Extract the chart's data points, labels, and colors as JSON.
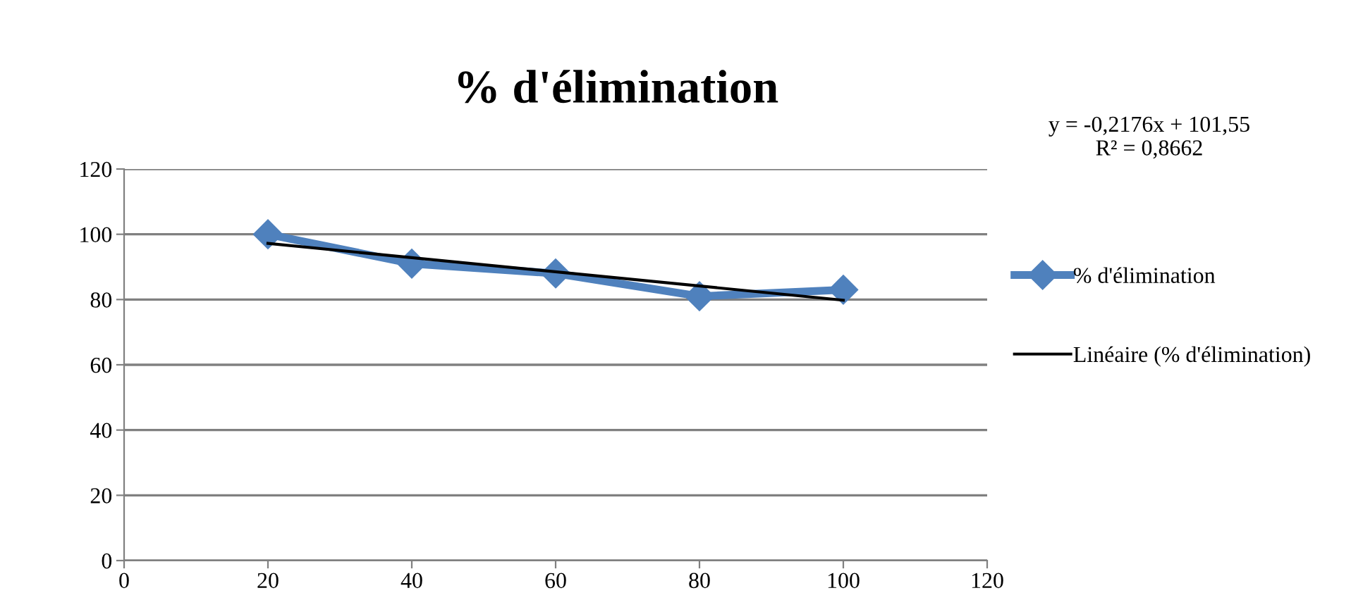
{
  "chart_data": {
    "type": "line",
    "title": "% d'élimination",
    "x": [
      20,
      40,
      60,
      80,
      100
    ],
    "series": [
      {
        "name": "% d'élimination",
        "color": "#4f81bd",
        "values": [
          100,
          91,
          88,
          81,
          83
        ],
        "marker": "diamond"
      },
      {
        "name": "Linéaire (% d'élimination)",
        "type": "line",
        "color": "#000000",
        "x": [
          20,
          100
        ],
        "values": [
          97.2,
          79.8
        ],
        "marker": "none"
      }
    ],
    "annotations": [
      "y = -0,2176x + 101,55\nR² = 0,8662"
    ],
    "xlim": [
      0,
      120
    ],
    "xticks": [
      0,
      20,
      40,
      60,
      80,
      100,
      120
    ],
    "ylim": [
      0,
      120
    ],
    "yticks": [
      0,
      20,
      40,
      60,
      80,
      100,
      120
    ],
    "grid": "y",
    "legend": "right"
  }
}
